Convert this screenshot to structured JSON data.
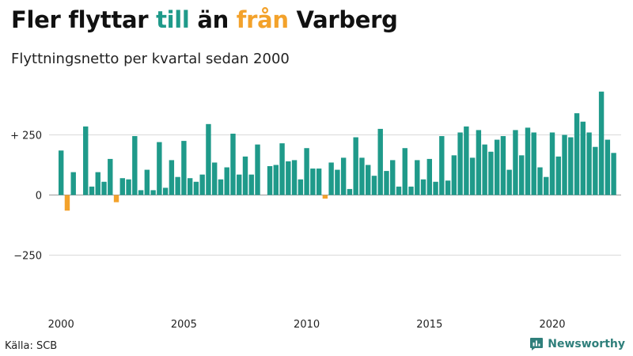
{
  "header": {
    "title_part1": "Fler flyttar ",
    "title_till": "till",
    "title_part2": " än ",
    "title_fran": "från",
    "title_part3": " Varberg",
    "subtitle": "Flyttningsnetto per kvartal sedan 2000"
  },
  "footer": {
    "source": "Källa: SCB",
    "brand": "Newsworthy"
  },
  "colors": {
    "positive": "#1f9a8a",
    "negative": "#f3a22b",
    "brand": "#2f7f7b"
  },
  "chart_data": {
    "type": "bar",
    "x_start_year": 2000,
    "x_start_quarter": 1,
    "values": [
      185,
      -65,
      95,
      0,
      285,
      35,
      95,
      55,
      150,
      -30,
      70,
      65,
      245,
      20,
      105,
      20,
      220,
      30,
      145,
      75,
      225,
      70,
      55,
      85,
      295,
      135,
      65,
      115,
      255,
      85,
      160,
      85,
      210,
      0,
      120,
      125,
      215,
      140,
      145,
      65,
      195,
      110,
      110,
      -15,
      135,
      105,
      155,
      25,
      240,
      155,
      125,
      80,
      275,
      100,
      145,
      35,
      195,
      35,
      145,
      65,
      150,
      55,
      245,
      60,
      165,
      260,
      285,
      155,
      270,
      210,
      180,
      230,
      245,
      105,
      270,
      165,
      280,
      260,
      115,
      75,
      260,
      160,
      250,
      240,
      340,
      305,
      260,
      200,
      430,
      230,
      175
    ],
    "yticks": [
      -250,
      0,
      250
    ],
    "ytick_labels": [
      "−250",
      "0",
      "+ 250"
    ],
    "xticks": [
      2000,
      2005,
      2010,
      2015,
      2020
    ],
    "ylim": [
      -460,
      460
    ],
    "grid": true
  }
}
